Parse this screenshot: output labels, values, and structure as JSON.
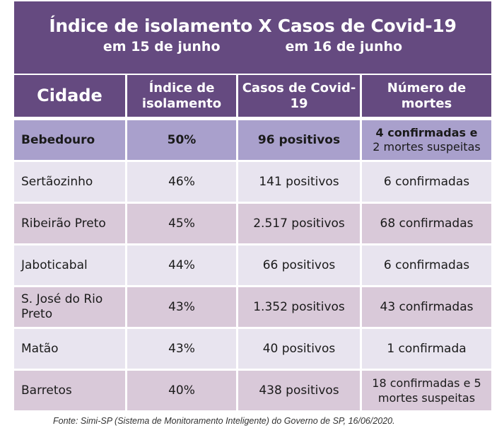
{
  "title": {
    "line1": "Índice de isolamento X Casos de Covid-19",
    "date_left": "em 15 de junho",
    "date_right": "em 16 de junho"
  },
  "headers": {
    "city": "Cidade",
    "isolation": "Índice de isolamento",
    "cases": "Casos de Covid-19",
    "deaths": "Número de mortes"
  },
  "rows": [
    {
      "city": "Bebedouro",
      "isolation": "50%",
      "cases": "96 positivos",
      "deaths": "4 confirmadas e",
      "deaths_sub": "2 mortes suspeitas"
    },
    {
      "city": "Sertãozinho",
      "isolation": "46%",
      "cases": "141 positivos",
      "deaths": "6 confirmadas"
    },
    {
      "city": "Ribeirão Preto",
      "isolation": "45%",
      "cases": "2.517 positivos",
      "deaths": "68 confirmadas"
    },
    {
      "city": "Jaboticabal",
      "isolation": "44%",
      "cases": "66 positivos",
      "deaths": "6 confirmadas"
    },
    {
      "city": "S. José do Rio Preto",
      "isolation": "43%",
      "cases": "1.352 positivos",
      "deaths": "43 confirmadas"
    },
    {
      "city": "Matão",
      "isolation": "43%",
      "cases": "40 positivos",
      "deaths": "1 confirmada"
    },
    {
      "city": "Barretos",
      "isolation": "40%",
      "cases": "438 positivos",
      "deaths": "18 confirmadas e 5 mortes suspeitas"
    }
  ],
  "source": "Fonte: Simi-SP (Sistema de Monitoramento Inteligente) do Governo de SP, 16/06/2020.",
  "colors": {
    "header_purple": "#654a80",
    "highlight_row": "#a9a0cc",
    "row_light": "#e8e4ef",
    "row_dark": "#d9c9d9"
  }
}
